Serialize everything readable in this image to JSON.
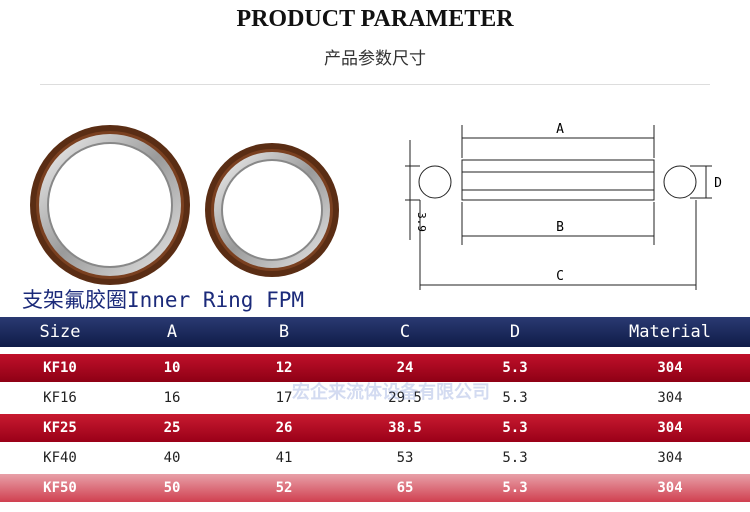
{
  "header": {
    "title": "PRODUCT PARAMETER",
    "subtitle": "产品参数尺寸"
  },
  "diagram": {
    "labels": {
      "a": "A",
      "b": "B",
      "c": "C",
      "d": "D",
      "thickness": "3.9"
    }
  },
  "caption": "支架氟胶圈Inner Ring FPM",
  "watermark": "宏企来流体设备有限公司",
  "table": {
    "columns": [
      "Size",
      "A",
      "B",
      "C",
      "D",
      "Material"
    ],
    "rows": [
      [
        "KF10",
        "10",
        "12",
        "24",
        "5.3",
        "304"
      ],
      [
        "KF16",
        "16",
        "17",
        "29.5",
        "5.3",
        "304"
      ],
      [
        "KF25",
        "25",
        "26",
        "38.5",
        "5.3",
        "304"
      ],
      [
        "KF40",
        "40",
        "41",
        "53",
        "5.3",
        "304"
      ],
      [
        "KF50",
        "50",
        "52",
        "65",
        "5.3",
        "304"
      ]
    ]
  }
}
